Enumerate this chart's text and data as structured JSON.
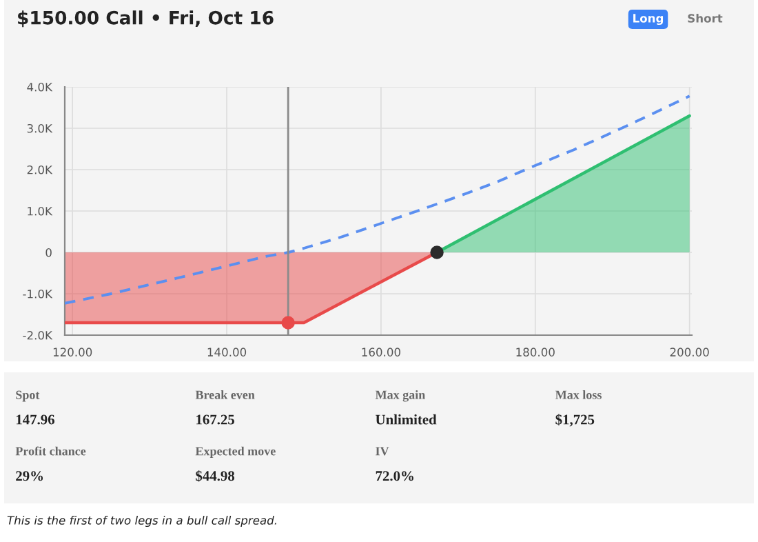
{
  "chart_data": [
    {
      "type": "line",
      "title": "$150.00 Call • Fri, Oct 16",
      "annotations": [
        "Long",
        "Short"
      ],
      "xlim": [
        119,
        200.3
      ],
      "ylim": [
        -2000,
        4000
      ],
      "xticks": [
        {
          "value": 120,
          "label": "120.00"
        },
        {
          "value": 140,
          "label": "140.00"
        },
        {
          "value": 160,
          "label": "160.00"
        },
        {
          "value": 180,
          "label": "180.00"
        },
        {
          "value": 200,
          "label": "200.00"
        }
      ],
      "yticks": [
        {
          "value": -2000,
          "label": "-2.0K"
        },
        {
          "value": -1000,
          "label": "-1.0K"
        },
        0,
        {
          "value": 1000,
          "label": "1.0K"
        },
        {
          "value": 2000,
          "label": "2.0K"
        },
        {
          "value": 3000,
          "label": "3.0K"
        },
        {
          "value": 4000,
          "label": "4.0K"
        }
      ],
      "grid": true,
      "ref_lines": [
        {
          "axis": "x",
          "value": 147.96,
          "color": "#8a8a8a"
        }
      ],
      "series": [
        {
          "type": "area",
          "color": "#e84a4a",
          "x": [
            119,
            150,
            167.25
          ],
          "values": [
            -1700,
            -1700,
            0
          ]
        },
        {
          "type": "area",
          "color": "#2fbf71",
          "x": [
            167.25,
            200
          ],
          "values": [
            0,
            3300
          ]
        },
        {
          "type": "line",
          "color": "#5b8ff0",
          "line_style": "dashed",
          "x": [
            119,
            125,
            130,
            135,
            140,
            145,
            148,
            150,
            155,
            160,
            165,
            170,
            175,
            180,
            185,
            190,
            195,
            200
          ],
          "values": [
            -1230,
            -1000,
            -780,
            -560,
            -330,
            -100,
            0,
            100,
            380,
            700,
            1020,
            1350,
            1700,
            2100,
            2480,
            2900,
            3330,
            3780
          ]
        },
        {
          "type": "scatter",
          "color": "#e84a4a",
          "marker": "circle",
          "x": [
            147.96
          ],
          "values": [
            -1700
          ]
        },
        {
          "type": "scatter",
          "color": "#2b2b2b",
          "marker": "circle",
          "x": [
            167.25
          ],
          "values": [
            0
          ]
        }
      ]
    },
    {
      "type": "other",
      "categories": [
        "Spot",
        "Break even",
        "Max gain",
        "Max loss",
        "Profit chance",
        "Expected move",
        "IV"
      ],
      "value_labels": [
        "147.96",
        "167.25",
        "Unlimited",
        "$1,725",
        "29%",
        "$44.98",
        "72.0%"
      ],
      "annotations": [
        "This is the first of two legs in a bull call spread."
      ]
    }
  ]
}
